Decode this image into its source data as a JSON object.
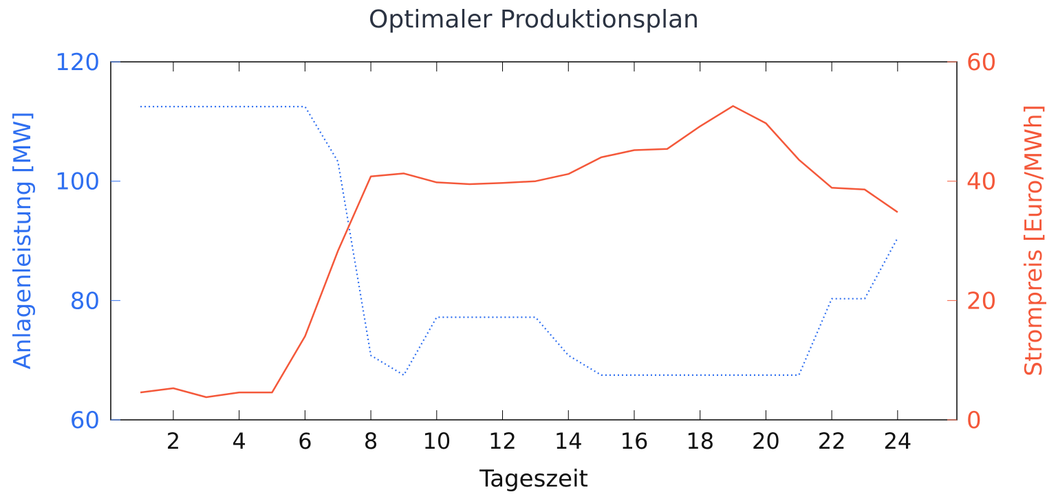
{
  "chart_data": {
    "type": "line",
    "title": "Optimaler Produktionsplan",
    "xlabel": "Tageszeit",
    "ylabel_left": "Anlagenleistung [MW]",
    "ylabel_right": "Strompreis [Euro/MWh]",
    "xlim": [
      0.1,
      25.8
    ],
    "xticks": [
      2,
      4,
      6,
      8,
      10,
      12,
      14,
      16,
      18,
      20,
      22,
      24
    ],
    "xtick_labels": [
      "2",
      "4",
      "6",
      "8",
      "10",
      "12",
      "14",
      "16",
      "18",
      "20",
      "22",
      "24"
    ],
    "ylim_left": [
      60,
      120
    ],
    "yticks_left": [
      60,
      80,
      100,
      120
    ],
    "ytick_labels_left": [
      "60",
      "80",
      "100",
      "120"
    ],
    "ylim_right": [
      0,
      60
    ],
    "yticks_right": [
      0,
      20,
      40,
      60
    ],
    "ytick_labels_right": [
      "0",
      "20",
      "40",
      "60"
    ],
    "grid": false,
    "colors": {
      "left": "#2f6ff0",
      "right": "#f4583a"
    },
    "series": [
      {
        "axis": "left",
        "style": "dotted",
        "x": [
          1,
          2,
          3,
          4,
          5,
          6,
          7,
          8,
          9,
          10,
          11,
          12,
          13,
          14,
          15,
          16,
          17,
          18,
          19,
          20,
          21,
          22,
          23,
          24
        ],
        "values": [
          112.5,
          112.5,
          112.5,
          112.5,
          112.5,
          112.5,
          103.3,
          70.8,
          67.5,
          77.2,
          77.2,
          77.2,
          77.2,
          70.8,
          67.5,
          67.5,
          67.5,
          67.5,
          67.5,
          67.5,
          67.5,
          80.3,
          80.3,
          90.5
        ]
      },
      {
        "axis": "right",
        "style": "solid",
        "x": [
          1,
          2,
          3,
          4,
          5,
          6,
          7,
          8,
          9,
          10,
          11,
          12,
          13,
          14,
          15,
          16,
          17,
          18,
          19,
          20,
          21,
          22,
          23,
          24
        ],
        "values": [
          4.6,
          5.3,
          3.8,
          4.6,
          4.6,
          14.0,
          28.3,
          40.8,
          41.3,
          39.8,
          39.5,
          39.7,
          40.0,
          41.2,
          44.0,
          45.2,
          45.4,
          49.2,
          52.6,
          49.7,
          43.6,
          38.9,
          38.6,
          34.8
        ]
      }
    ]
  }
}
